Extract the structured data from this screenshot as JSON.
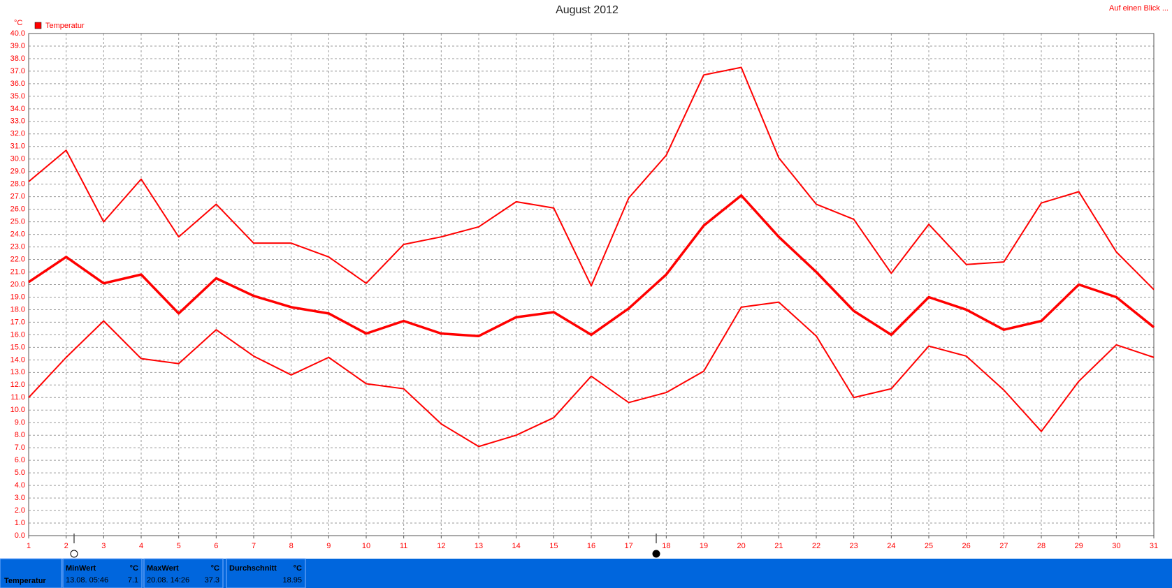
{
  "chart_data": {
    "type": "line",
    "title": "August 2012",
    "y_unit": "°C",
    "legend": "Temperatur",
    "legend_color": "#ff0000",
    "x": [
      1,
      2,
      3,
      4,
      5,
      6,
      7,
      8,
      9,
      10,
      11,
      12,
      13,
      14,
      15,
      16,
      17,
      18,
      19,
      20,
      21,
      22,
      23,
      24,
      25,
      26,
      27,
      28,
      29,
      30,
      31
    ],
    "xlim": [
      1,
      31
    ],
    "xticks": [
      1,
      2,
      3,
      4,
      5,
      6,
      7,
      8,
      9,
      10,
      11,
      12,
      13,
      14,
      15,
      16,
      17,
      18,
      19,
      20,
      21,
      22,
      23,
      24,
      25,
      26,
      27,
      28,
      29,
      30,
      31
    ],
    "ylim": [
      0,
      40
    ],
    "yticks": [
      {
        "value": 0,
        "label": "0.0"
      },
      {
        "value": 1,
        "label": "1.0"
      },
      {
        "value": 2,
        "label": "2.0"
      },
      {
        "value": 3,
        "label": "3.0"
      },
      {
        "value": 4,
        "label": "4.0"
      },
      {
        "value": 5,
        "label": "5.0"
      },
      {
        "value": 6,
        "label": "6.0"
      },
      {
        "value": 7,
        "label": "7.0"
      },
      {
        "value": 8,
        "label": "8.0"
      },
      {
        "value": 9,
        "label": "9.0"
      },
      {
        "value": 10,
        "label": "10.0"
      },
      {
        "value": 11,
        "label": "11.0"
      },
      {
        "value": 12,
        "label": "12.0"
      },
      {
        "value": 13,
        "label": "13.0"
      },
      {
        "value": 14,
        "label": "14.0"
      },
      {
        "value": 15,
        "label": "15.0"
      },
      {
        "value": 16,
        "label": "16.0"
      },
      {
        "value": 17,
        "label": "17.0"
      },
      {
        "value": 18,
        "label": "18.0"
      },
      {
        "value": 19,
        "label": "19.0"
      },
      {
        "value": 20,
        "label": "20.0"
      },
      {
        "value": 21,
        "label": "21.0"
      },
      {
        "value": 22,
        "label": "22.0"
      },
      {
        "value": 23,
        "label": "23.0"
      },
      {
        "value": 24,
        "label": "24.0"
      },
      {
        "value": 25,
        "label": "25.0"
      },
      {
        "value": 26,
        "label": "26.0"
      },
      {
        "value": 27,
        "label": "27.0"
      },
      {
        "value": 28,
        "label": "28.0"
      },
      {
        "value": 29,
        "label": "29.0"
      },
      {
        "value": 30,
        "label": "30.0"
      },
      {
        "value": 31,
        "label": "31.0"
      },
      {
        "value": 32,
        "label": "32.0"
      },
      {
        "value": 33,
        "label": "33.0"
      },
      {
        "value": 34,
        "label": "34.0"
      },
      {
        "value": 35,
        "label": "35.0"
      },
      {
        "value": 36,
        "label": "36.0"
      },
      {
        "value": 37,
        "label": "37.0"
      },
      {
        "value": 38,
        "label": "38.0"
      },
      {
        "value": 39,
        "label": "39.0"
      },
      {
        "value": 40,
        "label": "40.0"
      }
    ],
    "grid": true,
    "series": [
      {
        "color": "#ff0000",
        "values": [
          28.2,
          30.7,
          25.0,
          28.4,
          23.8,
          26.4,
          23.3,
          23.3,
          22.2,
          20.1,
          23.2,
          23.8,
          24.6,
          26.6,
          26.1,
          19.9,
          26.9,
          30.3,
          36.7,
          37.3,
          30.1,
          26.4,
          25.2,
          20.9,
          24.8,
          21.6,
          21.8,
          26.5,
          27.4,
          22.6,
          19.6
        ]
      },
      {
        "color": "#ff0000",
        "values": [
          20.2,
          22.2,
          20.1,
          20.8,
          17.7,
          20.5,
          19.1,
          18.2,
          17.7,
          16.1,
          17.1,
          16.1,
          15.9,
          17.4,
          17.8,
          16.0,
          18.1,
          20.8,
          24.7,
          27.1,
          23.8,
          21.0,
          17.9,
          16.0,
          19.0,
          18.0,
          16.4,
          17.1,
          20.0,
          19.0,
          16.6
        ]
      },
      {
        "color": "#ff0000",
        "values": [
          11.0,
          14.2,
          17.1,
          14.1,
          13.7,
          16.4,
          14.3,
          12.8,
          14.2,
          12.1,
          11.7,
          8.9,
          7.1,
          8.0,
          9.4,
          12.7,
          10.6,
          11.4,
          13.1,
          18.2,
          18.6,
          15.9,
          11.0,
          11.7,
          15.1,
          14.3,
          11.6,
          8.3,
          12.3,
          15.2,
          14.2
        ]
      }
    ]
  },
  "link": "Auf einen Blick ...",
  "summary": {
    "row_label": "Temperatur",
    "columns": [
      {
        "header": "MinWert",
        "unit": "°C",
        "time": "13.08. 05:46",
        "value": 7.1
      },
      {
        "header": "MaxWert",
        "unit": "°C",
        "time": "20.08. 14:26",
        "value": 37.3
      },
      {
        "header": "Durchschnitt",
        "unit": "°C",
        "value": 18.95
      }
    ]
  }
}
